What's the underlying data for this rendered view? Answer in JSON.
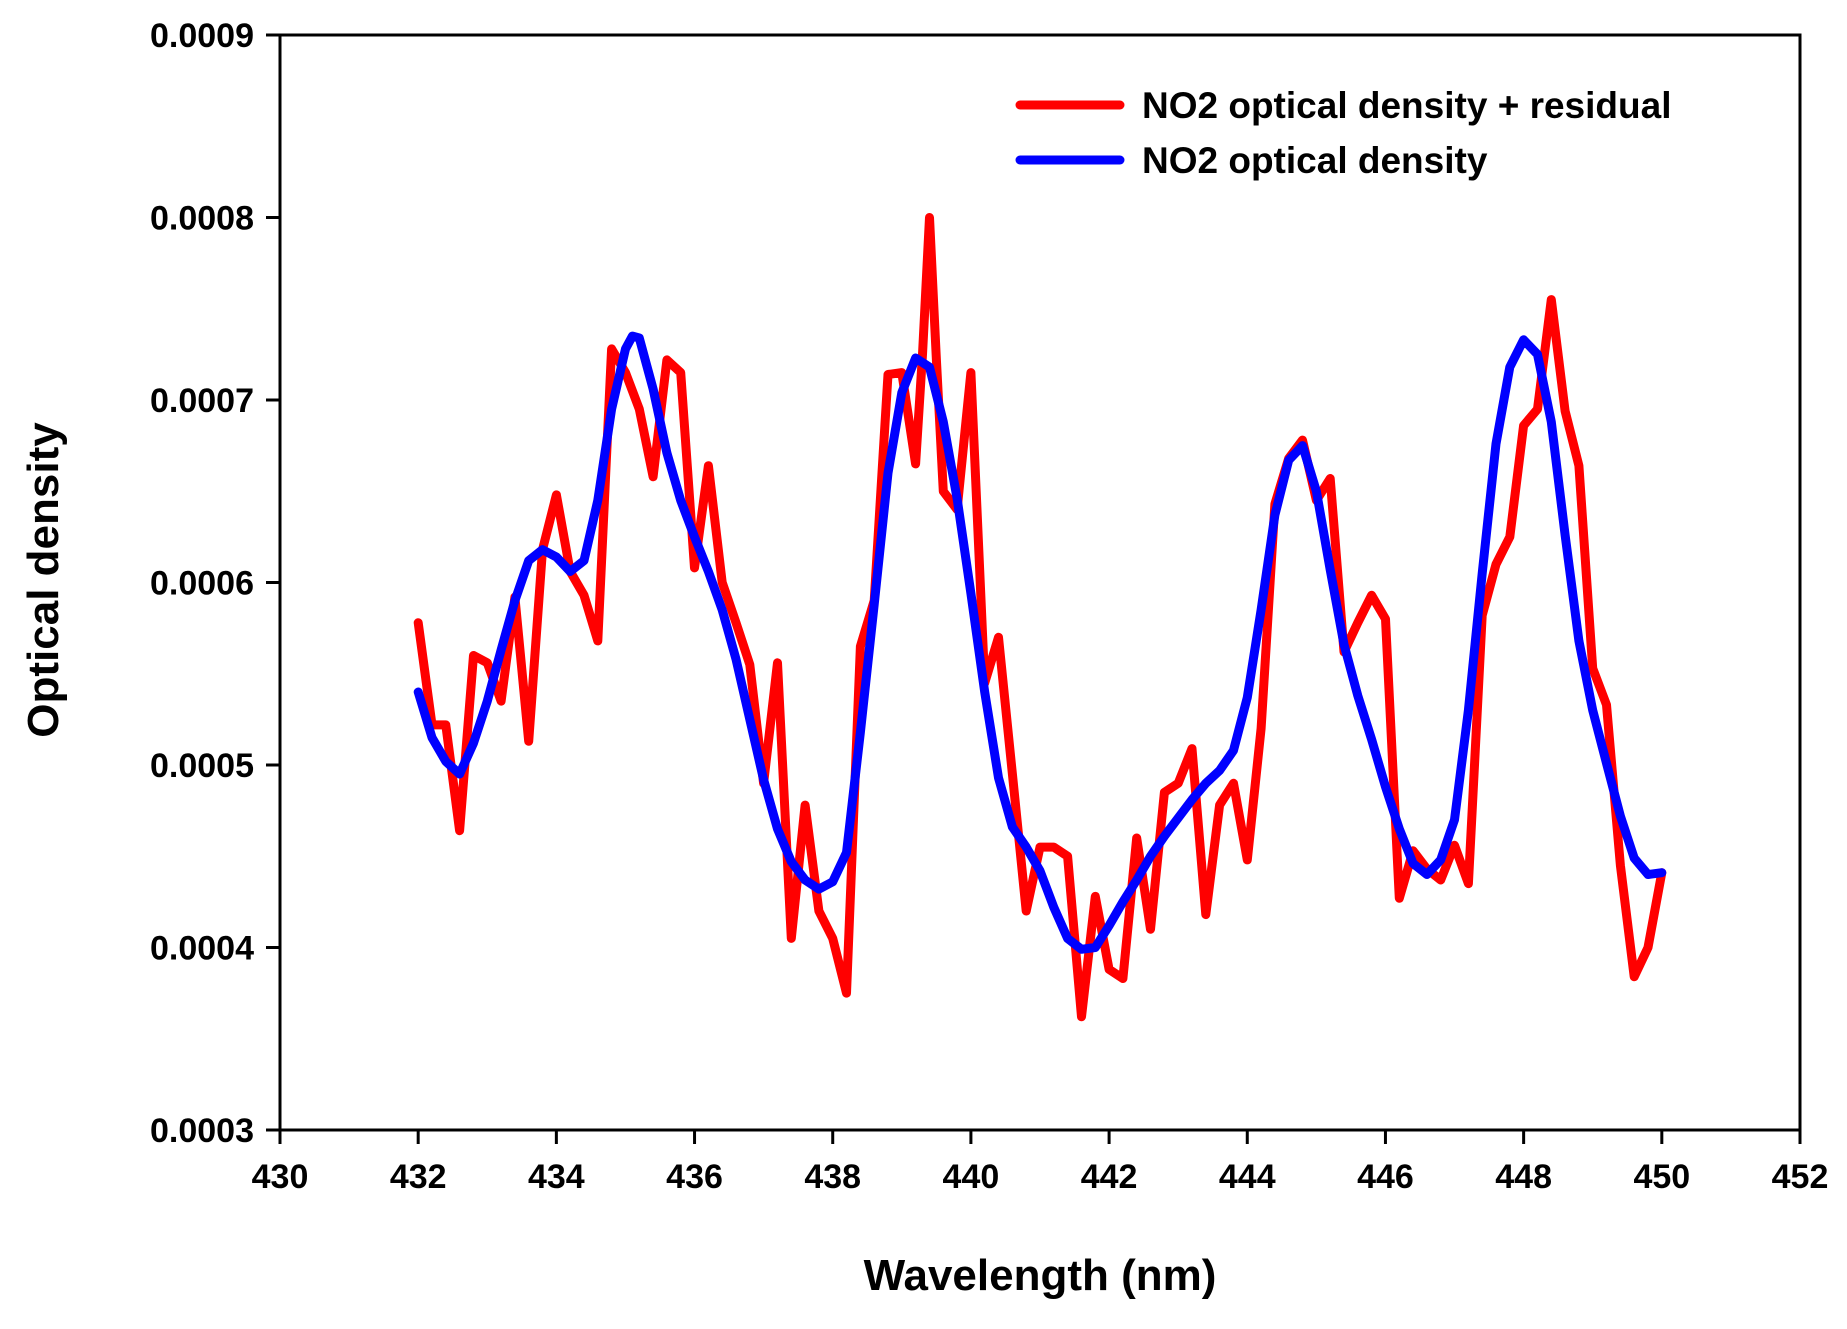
{
  "chart_data": {
    "type": "line",
    "title": "",
    "xlabel": "Wavelength (nm)",
    "ylabel": "Optical density",
    "xlim": [
      430,
      452
    ],
    "ylim": [
      0.0003,
      0.0009
    ],
    "x_ticks": [
      430,
      432,
      434,
      436,
      438,
      440,
      442,
      444,
      446,
      448,
      450,
      452
    ],
    "x_tick_labels": [
      "430",
      "432",
      "434",
      "436",
      "438",
      "440",
      "442",
      "444",
      "446",
      "448",
      "450",
      "452"
    ],
    "y_ticks": [
      0.0003,
      0.0004,
      0.0005,
      0.0006,
      0.0007,
      0.0008,
      0.0009
    ],
    "y_tick_labels": [
      "0.0003",
      "0.0004",
      "0.0005",
      "0.0006",
      "0.0007",
      "0.0008",
      "0.0009"
    ],
    "grid": false,
    "legend_position": "top-right",
    "series": [
      {
        "name": "NO2 optical density + residual",
        "color": "#ff0000",
        "x": [
          432.0,
          432.2,
          432.4,
          432.6,
          432.8,
          433.0,
          433.2,
          433.4,
          433.6,
          433.8,
          434.0,
          434.2,
          434.4,
          434.6,
          434.8,
          435.0,
          435.2,
          435.4,
          435.6,
          435.8,
          436.0,
          436.2,
          436.4,
          436.6,
          436.8,
          437.0,
          437.2,
          437.4,
          437.6,
          437.8,
          438.0,
          438.2,
          438.4,
          438.6,
          438.8,
          439.0,
          439.2,
          439.3,
          439.4,
          439.5,
          439.6,
          439.8,
          440.0,
          440.2,
          440.4,
          440.6,
          440.8,
          441.0,
          441.2,
          441.4,
          441.6,
          441.8,
          442.0,
          442.2,
          442.4,
          442.6,
          442.8,
          443.0,
          443.2,
          443.4,
          443.6,
          443.8,
          444.0,
          444.2,
          444.4,
          444.6,
          444.8,
          445.0,
          445.2,
          445.4,
          445.6,
          445.8,
          446.0,
          446.2,
          446.4,
          446.6,
          446.8,
          447.0,
          447.2,
          447.4,
          447.6,
          447.8,
          448.0,
          448.2,
          448.4,
          448.6,
          448.8,
          449.0,
          449.2,
          449.4,
          449.6,
          449.8,
          450.0
        ],
        "y": [
          0.000578,
          0.000522,
          0.000522,
          0.000464,
          0.00056,
          0.000556,
          0.000535,
          0.000592,
          0.000513,
          0.000618,
          0.000648,
          0.000606,
          0.000593,
          0.000568,
          0.000728,
          0.000715,
          0.000695,
          0.000658,
          0.000722,
          0.000715,
          0.000608,
          0.000664,
          0.0006,
          0.000578,
          0.000555,
          0.00049,
          0.000556,
          0.000405,
          0.000478,
          0.00042,
          0.000405,
          0.000375,
          0.000565,
          0.00059,
          0.000714,
          0.000715,
          0.000665,
          0.000725,
          0.0008,
          0.000722,
          0.00065,
          0.00064,
          0.000715,
          0.000545,
          0.00057,
          0.000495,
          0.00042,
          0.000455,
          0.000455,
          0.00045,
          0.000362,
          0.000428,
          0.000388,
          0.000383,
          0.00046,
          0.00041,
          0.000485,
          0.00049,
          0.000509,
          0.000418,
          0.000478,
          0.00049,
          0.000448,
          0.00052,
          0.000643,
          0.000668,
          0.000678,
          0.000645,
          0.000657,
          0.000562,
          0.000578,
          0.000593,
          0.00058,
          0.000427,
          0.000453,
          0.000443,
          0.000437,
          0.000456,
          0.000435,
          0.000582,
          0.00061,
          0.000625,
          0.000686,
          0.000695,
          0.000755,
          0.000694,
          0.000664,
          0.000553,
          0.000533,
          0.000445,
          0.000384,
          0.0004,
          0.000441
        ]
      },
      {
        "name": "NO2 optical density",
        "color": "#0000ff",
        "x": [
          432.0,
          432.2,
          432.4,
          432.6,
          432.8,
          433.0,
          433.2,
          433.4,
          433.6,
          433.8,
          434.0,
          434.2,
          434.4,
          434.6,
          434.8,
          435.0,
          435.1,
          435.2,
          435.4,
          435.6,
          435.8,
          436.0,
          436.2,
          436.4,
          436.6,
          436.8,
          437.0,
          437.2,
          437.4,
          437.6,
          437.8,
          438.0,
          438.2,
          438.4,
          438.6,
          438.8,
          439.0,
          439.2,
          439.4,
          439.6,
          439.8,
          440.0,
          440.2,
          440.4,
          440.6,
          440.8,
          441.0,
          441.2,
          441.4,
          441.6,
          441.8,
          442.0,
          442.2,
          442.4,
          442.6,
          442.8,
          443.0,
          443.2,
          443.4,
          443.6,
          443.8,
          444.0,
          444.2,
          444.4,
          444.6,
          444.8,
          445.0,
          445.2,
          445.4,
          445.6,
          445.8,
          446.0,
          446.2,
          446.4,
          446.6,
          446.8,
          447.0,
          447.2,
          447.4,
          447.6,
          447.8,
          448.0,
          448.2,
          448.4,
          448.6,
          448.8,
          449.0,
          449.2,
          449.4,
          449.6,
          449.8,
          450.0
        ],
        "y": [
          0.00054,
          0.000515,
          0.000502,
          0.000495,
          0.000512,
          0.000535,
          0.000563,
          0.00059,
          0.000612,
          0.000618,
          0.000614,
          0.000606,
          0.000612,
          0.000645,
          0.000695,
          0.000728,
          0.000735,
          0.000734,
          0.000706,
          0.000671,
          0.000645,
          0.000625,
          0.000606,
          0.000585,
          0.000558,
          0.000525,
          0.000492,
          0.000465,
          0.000447,
          0.000437,
          0.000432,
          0.000436,
          0.000452,
          0.000518,
          0.000588,
          0.00066,
          0.000704,
          0.000723,
          0.000718,
          0.000688,
          0.000646,
          0.000594,
          0.00054,
          0.000493,
          0.000466,
          0.000455,
          0.000442,
          0.000422,
          0.000405,
          0.000399,
          0.0004,
          0.000412,
          0.000425,
          0.000437,
          0.00045,
          0.000461,
          0.000471,
          0.000481,
          0.00049,
          0.000497,
          0.000508,
          0.000537,
          0.000585,
          0.000637,
          0.000667,
          0.000675,
          0.00065,
          0.000607,
          0.000566,
          0.000538,
          0.000514,
          0.000488,
          0.000465,
          0.000446,
          0.00044,
          0.000448,
          0.00047,
          0.00053,
          0.000605,
          0.000676,
          0.000718,
          0.000733,
          0.000725,
          0.000688,
          0.000626,
          0.000568,
          0.00053,
          0.000501,
          0.000472,
          0.000449,
          0.00044,
          0.000441
        ]
      }
    ]
  }
}
